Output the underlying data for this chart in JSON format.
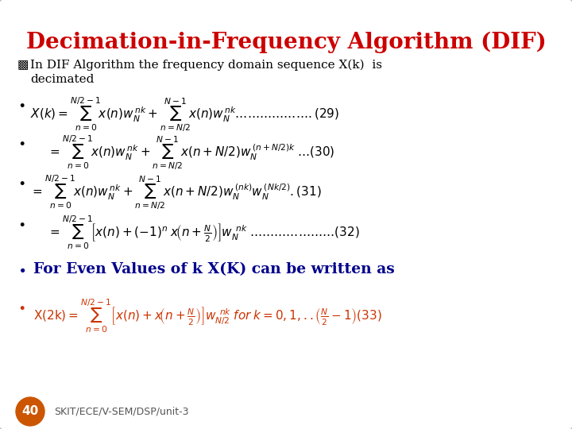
{
  "title": "Decimation-in-Frequency Algorithm (DIF)",
  "title_color": "#CC0000",
  "bg_color": "#FFFFFF",
  "border_color": "#BBBBBB",
  "eq_color": "#000000",
  "bold_blue": "#00008B",
  "bold_red": "#CC3300",
  "orange_circle": "#CC5500",
  "footer_num": "40",
  "footer_text": "SKIT/ECE/V-SEM/DSP/unit-3"
}
